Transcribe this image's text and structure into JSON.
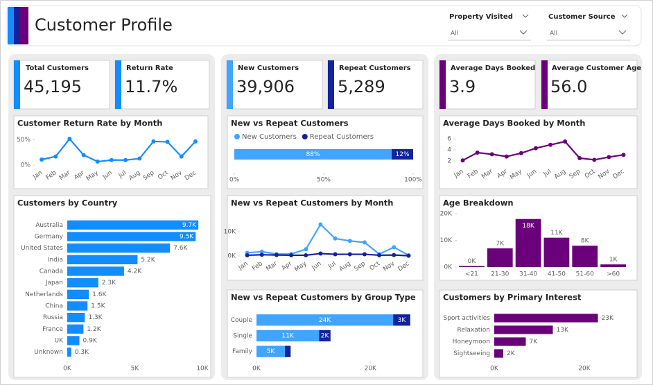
{
  "header": {
    "title": "Customer Profile"
  },
  "filters": [
    {
      "label": "Property Visited",
      "value": "All"
    },
    {
      "label": "Customer Source",
      "value": "All"
    }
  ],
  "kpis": [
    {
      "label": "Total Customers",
      "value": "45,195"
    },
    {
      "label": "Return Rate",
      "value": "11.7%"
    },
    {
      "label": "New Customers",
      "value": "39,906"
    },
    {
      "label": "Repeat Customers",
      "value": "5,289"
    },
    {
      "label": "Average Days Booked",
      "value": "3.9"
    },
    {
      "label": "Average Customer Age",
      "value": "56.0"
    }
  ],
  "chart_data": [
    {
      "type": "line",
      "title": "Customer Return Rate by Month",
      "categories": [
        "Jan",
        "Feb",
        "Mar",
        "Apr",
        "May",
        "Jun",
        "Jul",
        "Aug",
        "Sep",
        "Oct",
        "Nov",
        "Dec"
      ],
      "values": [
        11,
        17,
        52,
        20,
        7,
        10,
        10,
        13,
        47,
        46,
        17,
        47
      ],
      "color": "#118dff",
      "ylim": [
        0,
        55
      ],
      "yticks": [
        {
          "value": 0,
          "label": "0%"
        },
        {
          "value": 50,
          "label": "50%"
        }
      ]
    },
    {
      "type": "bar",
      "orientation": "horizontal",
      "stacked": true,
      "title": "New vs Repeat Customers",
      "series": [
        {
          "name": "New Customers",
          "color": "#41a4ff",
          "values": [
            88
          ],
          "value_labels": [
            "88%"
          ]
        },
        {
          "name": "Repeat Customers",
          "color": "#12239e",
          "values": [
            12
          ],
          "value_labels": [
            "12%"
          ]
        }
      ],
      "xlim": [
        0,
        100
      ],
      "xticks": [
        {
          "value": 0,
          "label": "0%"
        },
        {
          "value": 50,
          "label": "50%"
        },
        {
          "value": 100,
          "label": "100%"
        }
      ]
    },
    {
      "type": "line",
      "title": "Average Days Booked by Month",
      "categories": [
        "Jan",
        "Feb",
        "Mar",
        "Apr",
        "May",
        "Jun",
        "Jul",
        "Aug",
        "Sep",
        "Oct",
        "Nov",
        "Dec"
      ],
      "values": [
        2.1,
        3.5,
        3.2,
        2.8,
        3.4,
        4.3,
        4.9,
        5.5,
        2.5,
        2.2,
        2.7,
        3.1
      ],
      "color": "#6b007b",
      "ylim": [
        1.5,
        6.5
      ],
      "yticks": [
        2,
        4,
        6
      ]
    },
    {
      "type": "bar",
      "orientation": "horizontal",
      "title": "Customers by Country",
      "categories": [
        "Australia",
        "Germany",
        "United States",
        "India",
        "Canada",
        "Japan",
        "Netherlands",
        "China",
        "Russia",
        "France",
        "UK",
        "Unknown"
      ],
      "values": [
        9700,
        9500,
        7600,
        5200,
        4200,
        2300,
        1600,
        1500,
        1300,
        1200,
        900,
        300
      ],
      "value_labels": [
        "9.7K",
        "9.5K",
        "7.6K",
        "5.2K",
        "4.2K",
        "2.3K",
        "1.6K",
        "1.5K",
        "1.3K",
        "1.2K",
        "0.9K",
        "0.3K"
      ],
      "color": "#118dff",
      "xlim": [
        0,
        10000
      ],
      "xticks": [
        {
          "value": 0,
          "label": "0K"
        },
        {
          "value": 5000,
          "label": "5K"
        },
        {
          "value": 10000,
          "label": "10K"
        }
      ]
    },
    {
      "type": "line",
      "title": "New vs Repeat Customers by Month",
      "categories": [
        "Jan",
        "Feb",
        "Mar",
        "Apr",
        "May",
        "Jun",
        "Jul",
        "Aug",
        "Sep",
        "Oct",
        "Nov",
        "Dec"
      ],
      "series": [
        {
          "color": "#41a4ff",
          "values": [
            1300,
            1800,
            800,
            800,
            2800,
            13000,
            7200,
            6200,
            5600,
            800,
            3600,
            300
          ]
        },
        {
          "color": "#12239e",
          "values": [
            300,
            500,
            400,
            300,
            300,
            1000,
            700,
            700,
            700,
            300,
            400,
            100
          ]
        }
      ],
      "ylim": [
        0,
        14000
      ],
      "yticks": [
        {
          "value": 0,
          "label": "0K"
        },
        {
          "value": 10000,
          "label": "10K"
        }
      ]
    },
    {
      "type": "bar",
      "orientation": "vertical",
      "title": "Age Breakdown",
      "categories": [
        "<21",
        "21-30",
        "31-40",
        "41-50",
        "51-60",
        ">60"
      ],
      "values": [
        400,
        7000,
        18000,
        11000,
        8000,
        1000
      ],
      "value_labels": [
        "0K",
        "7K",
        "18K",
        "11K",
        "8K",
        "1K"
      ],
      "color": "#6b007b",
      "ylim": [
        0,
        20000
      ],
      "yticks": [
        {
          "value": 0,
          "label": "0K"
        },
        {
          "value": 10000,
          "label": "10K"
        },
        {
          "value": 20000,
          "label": "20K"
        }
      ]
    },
    {
      "type": "bar",
      "orientation": "horizontal",
      "stacked": true,
      "title": "New vs Repeat Customers by Group Type",
      "categories": [
        "Couple",
        "Single",
        "Family"
      ],
      "series": [
        {
          "color": "#41a4ff",
          "values": [
            24000,
            11000,
            5000
          ],
          "value_labels": [
            "24K",
            "11K",
            "5K"
          ]
        },
        {
          "color": "#12239e",
          "values": [
            3000,
            2000,
            1000
          ],
          "value_labels": [
            "3K",
            "2K",
            null
          ]
        }
      ],
      "xlim": [
        0,
        28000
      ],
      "xticks": [
        {
          "value": 0,
          "label": "0K"
        },
        {
          "value": 20000,
          "label": "20K"
        }
      ]
    },
    {
      "type": "bar",
      "orientation": "horizontal",
      "title": "Customers by Primary Interest",
      "categories": [
        "Sport activities",
        "Relaxation",
        "Honeymoon",
        "Sightseeing"
      ],
      "values": [
        23000,
        13000,
        7000,
        2000
      ],
      "value_labels": [
        "23K",
        "13K",
        "7K",
        "2K"
      ],
      "color": "#6b007b",
      "xlim": [
        0,
        28000
      ],
      "xticks": [
        {
          "value": 0,
          "label": "0K"
        },
        {
          "value": 20000,
          "label": "20K"
        }
      ]
    }
  ]
}
